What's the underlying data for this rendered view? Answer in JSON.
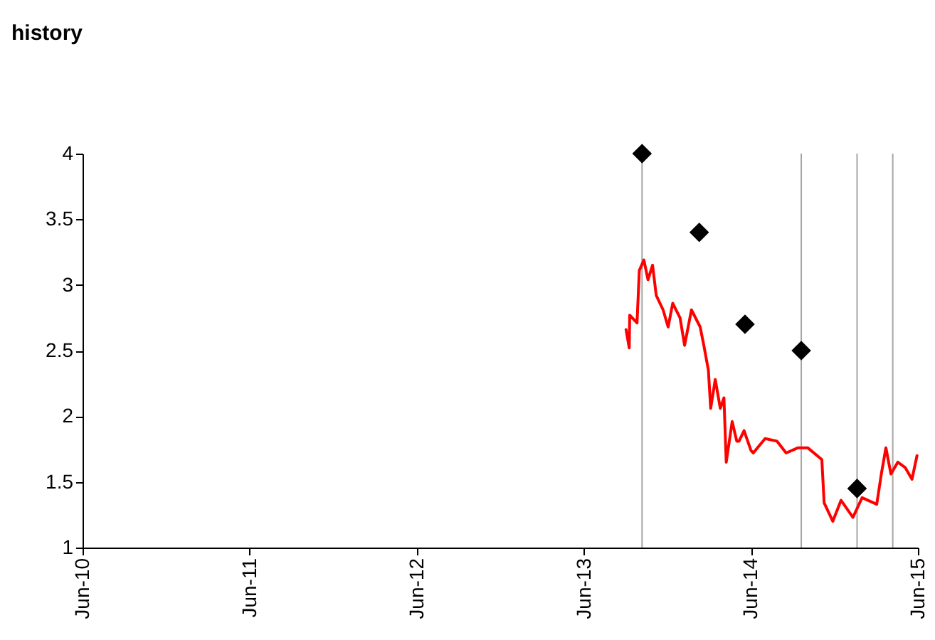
{
  "chart_data": {
    "type": "line",
    "title": "history",
    "xlim": [
      "2010-06-01",
      "2015-06-01"
    ],
    "xticks": [
      {
        "value": "2010-06-01",
        "label": "Jun-10"
      },
      {
        "value": "2011-06-01",
        "label": "Jun-11"
      },
      {
        "value": "2012-06-01",
        "label": "Jun-12"
      },
      {
        "value": "2013-06-01",
        "label": "Jun-13"
      },
      {
        "value": "2014-06-01",
        "label": "Jun-14"
      },
      {
        "value": "2015-06-01",
        "label": "Jun-15"
      }
    ],
    "ylim": [
      1,
      4
    ],
    "yticks": [
      1,
      1.5,
      2,
      2.5,
      3,
      3.5,
      4
    ],
    "grid": false,
    "ref_lines": [
      {
        "axis": "x",
        "value": "2013-10-06",
        "color": "#a6a6a6"
      },
      {
        "axis": "x",
        "value": "2014-09-19",
        "color": "#a6a6a6"
      },
      {
        "axis": "x",
        "value": "2015-01-19",
        "color": "#a6a6a6"
      },
      {
        "axis": "x",
        "value": "2015-04-07",
        "color": "#a6a6a6"
      }
    ],
    "series": [
      {
        "type": "line",
        "color": "#ff0000",
        "x": [
          "2013-09-01",
          "2013-09-08",
          "2013-09-09",
          "2013-09-25",
          "2013-09-30",
          "2013-10-10",
          "2013-10-19",
          "2013-10-29",
          "2013-11-06",
          "2013-11-21",
          "2013-12-02",
          "2013-12-12",
          "2013-12-28",
          "2014-01-07",
          "2014-01-22",
          "2014-02-10",
          "2014-02-18",
          "2014-02-28",
          "2014-03-05",
          "2014-03-15",
          "2014-03-26",
          "2014-04-03",
          "2014-04-08",
          "2014-04-21",
          "2014-05-01",
          "2014-05-06",
          "2014-05-17",
          "2014-06-01",
          "2014-06-06",
          "2014-07-02",
          "2014-07-28",
          "2014-08-17",
          "2014-09-12",
          "2014-10-03",
          "2014-11-03",
          "2014-11-08",
          "2014-11-27",
          "2014-12-15",
          "2015-01-10",
          "2015-01-30",
          "2015-03-03",
          "2015-03-13",
          "2015-03-23",
          "2015-04-03",
          "2015-04-18",
          "2015-05-04",
          "2015-05-19",
          "2015-05-30"
        ],
        "values": [
          2.66,
          2.52,
          2.77,
          2.71,
          3.11,
          3.19,
          3.04,
          3.15,
          2.92,
          2.81,
          2.68,
          2.86,
          2.75,
          2.54,
          2.81,
          2.68,
          2.54,
          2.35,
          2.06,
          2.28,
          2.06,
          2.14,
          1.65,
          1.96,
          1.81,
          1.81,
          1.89,
          1.74,
          1.72,
          1.83,
          1.81,
          1.72,
          1.76,
          1.76,
          1.67,
          1.34,
          1.2,
          1.36,
          1.23,
          1.38,
          1.33,
          1.56,
          1.76,
          1.56,
          1.65,
          1.61,
          1.52,
          1.7
        ]
      },
      {
        "type": "scatter",
        "color": "#000000",
        "marker": "diamond",
        "x": [
          "2013-10-06",
          "2014-02-08",
          "2014-05-19",
          "2014-09-19",
          "2015-01-19"
        ],
        "values": [
          4,
          3.4,
          2.7,
          2.5,
          1.45
        ]
      }
    ]
  }
}
